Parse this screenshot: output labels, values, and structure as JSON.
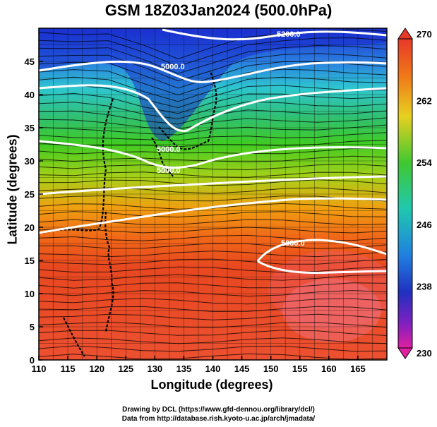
{
  "title": "GSM 18Z03Jan2024 (500.0hPa)",
  "xlabel": "Longitude (degrees)",
  "ylabel": "Latitude  (degrees)",
  "credits": {
    "line1": "Drawing by DCL (https://www.gfd-dennou.org/library/dcl/)",
    "line2": "Data from http://database.rish.kyoto-u.ac.jp/arch/jmadata/"
  },
  "map": {
    "xlim": [
      110,
      170
    ],
    "ylim": [
      0,
      50
    ],
    "xticks": [
      "110",
      "115",
      "120",
      "125",
      "130",
      "135",
      "140",
      "145",
      "150",
      "155",
      "160",
      "165"
    ],
    "yticks": [
      "0",
      "5",
      "10",
      "15",
      "20",
      "25",
      "30",
      "35",
      "40",
      "45"
    ],
    "contour_labels": [
      "5200.0",
      "5000.0",
      "5000.0",
      "5000.0",
      "5000.0"
    ]
  },
  "colorbar": {
    "min": 230,
    "max": 270,
    "ticks": [
      "230",
      "238",
      "246",
      "254",
      "262",
      "270"
    ]
  },
  "colors": {
    "cold": "#1a2fd0",
    "mid": "#33cc22",
    "warm": "#e84820",
    "contour": "#ffffff"
  }
}
